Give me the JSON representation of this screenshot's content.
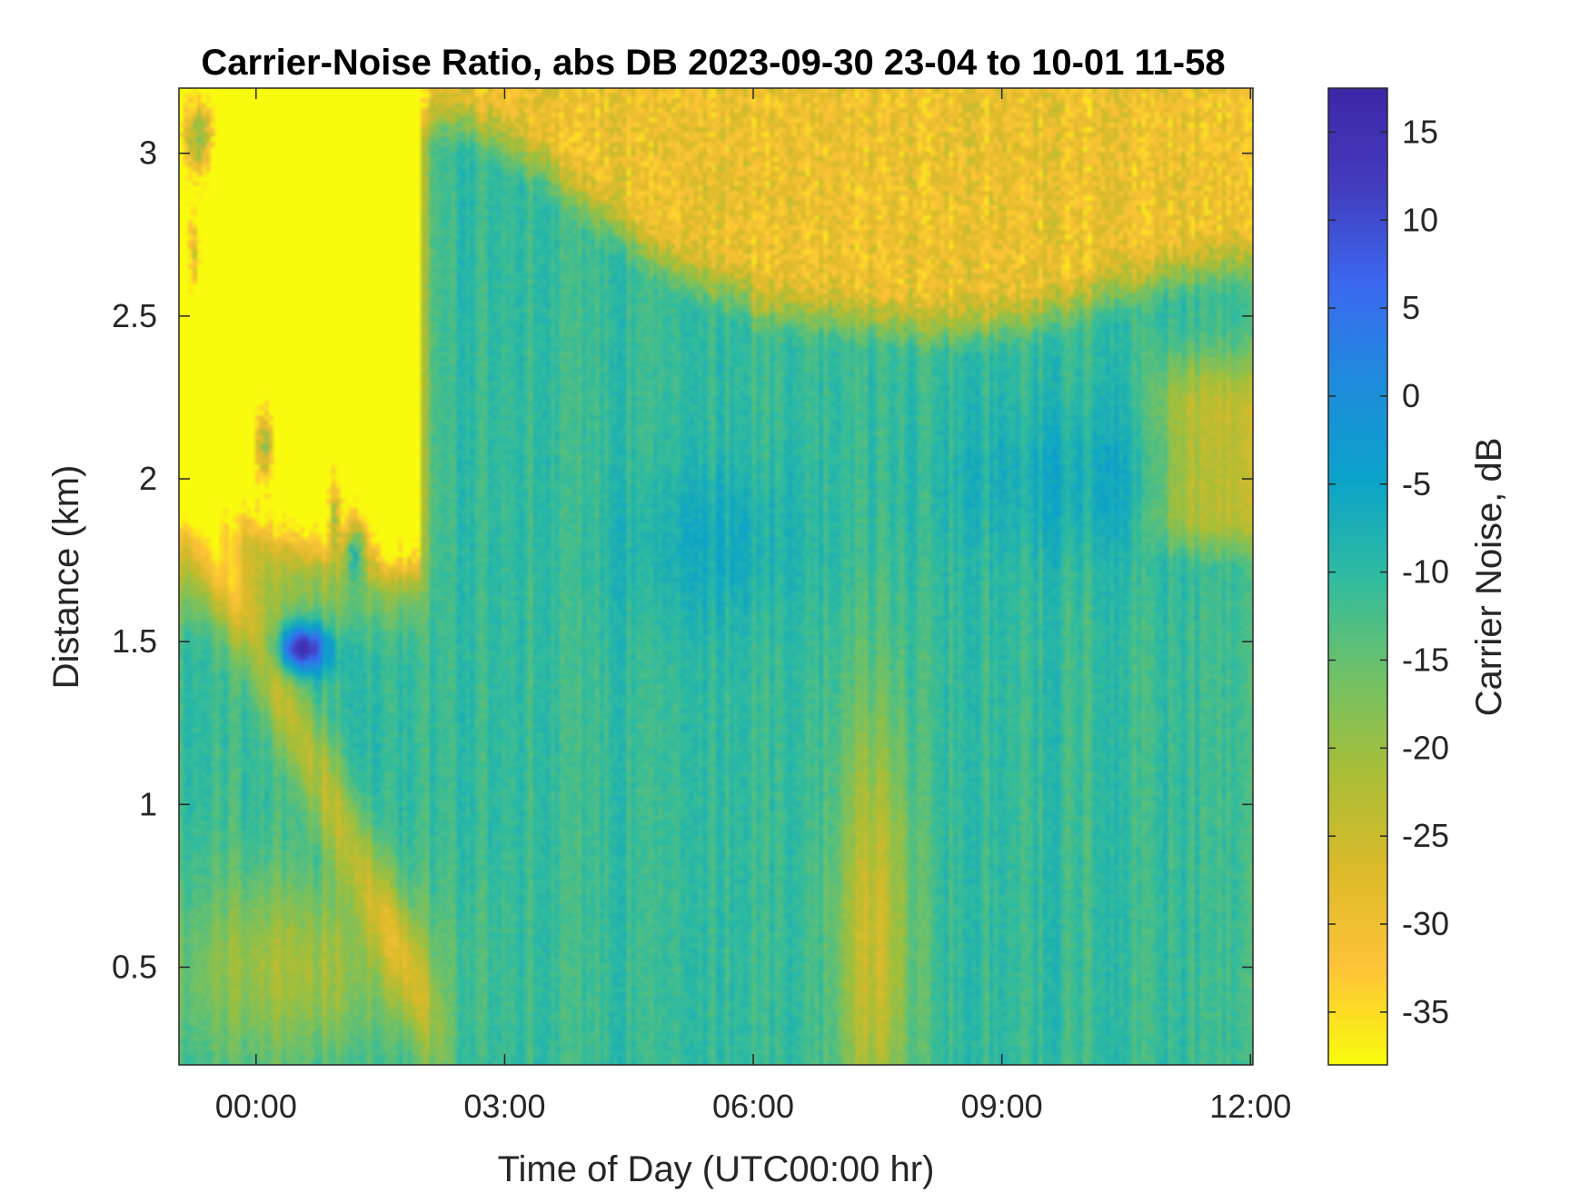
{
  "chart_data": {
    "type": "heatmap",
    "title": "Carrier-Noise Ratio, abs DB 2023-09-30 23-04 to 10-01 11-58",
    "xlabel": "Time of Day (UTC00:00 hr)",
    "ylabel": "Distance (km)",
    "colorbar_label": "Carrier Noise, dB",
    "x_range_hours": [
      -0.93,
      12.03
    ],
    "y_range_km": [
      0.2,
      3.2
    ],
    "color_range_db": [
      -38,
      17.5
    ],
    "x_ticks": [
      {
        "value": 0,
        "label": "00:00"
      },
      {
        "value": 3,
        "label": "03:00"
      },
      {
        "value": 6,
        "label": "06:00"
      },
      {
        "value": 9,
        "label": "09:00"
      },
      {
        "value": 12,
        "label": "12:00"
      }
    ],
    "y_ticks": [
      {
        "value": 0.5,
        "label": "0.5"
      },
      {
        "value": 1,
        "label": "1"
      },
      {
        "value": 1.5,
        "label": "1.5"
      },
      {
        "value": 2,
        "label": "2"
      },
      {
        "value": 2.5,
        "label": "2.5"
      },
      {
        "value": 3,
        "label": "3"
      }
    ],
    "colorbar_ticks": [
      {
        "value": 15,
        "label": "15"
      },
      {
        "value": 10,
        "label": "10"
      },
      {
        "value": 5,
        "label": "5"
      },
      {
        "value": 0,
        "label": "0"
      },
      {
        "value": -5,
        "label": "-5"
      },
      {
        "value": -10,
        "label": "-10"
      },
      {
        "value": -15,
        "label": "-15"
      },
      {
        "value": -20,
        "label": "-20"
      },
      {
        "value": -25,
        "label": "-25"
      },
      {
        "value": -30,
        "label": "-30"
      },
      {
        "value": -35,
        "label": "-35"
      }
    ],
    "colormap": [
      "#f9fb0e",
      "#fec338",
      "#dbba2a",
      "#a8be37",
      "#6fc168",
      "#2fbba0",
      "#0ba2c9",
      "#1f8bdc",
      "#3b68f0",
      "#433cbd",
      "#3e26a8"
    ],
    "region_estimates_db": [
      {
        "time_range": [
          -0.93,
          2.0
        ],
        "distance_range": [
          1.8,
          3.2
        ],
        "value": -30
      },
      {
        "time_range": [
          -0.93,
          2.5
        ],
        "distance_range": [
          0.2,
          1.8
        ],
        "value": -15
      },
      {
        "time_range": [
          0.3,
          0.9
        ],
        "distance_range": [
          1.4,
          1.6
        ],
        "value": 12
      },
      {
        "time_range": [
          2.0,
          7.0
        ],
        "distance_range": [
          0.2,
          2.7
        ],
        "value": -12
      },
      {
        "time_range": [
          7.0,
          8.1
        ],
        "distance_range": [
          0.2,
          1.4
        ],
        "value": -27
      },
      {
        "time_range": [
          8.8,
          12.03
        ],
        "distance_range": [
          0.2,
          2.2
        ],
        "value": -12
      },
      {
        "time_range": [
          6.0,
          12.03
        ],
        "distance_range": [
          2.5,
          3.2
        ],
        "value": -31
      }
    ]
  }
}
